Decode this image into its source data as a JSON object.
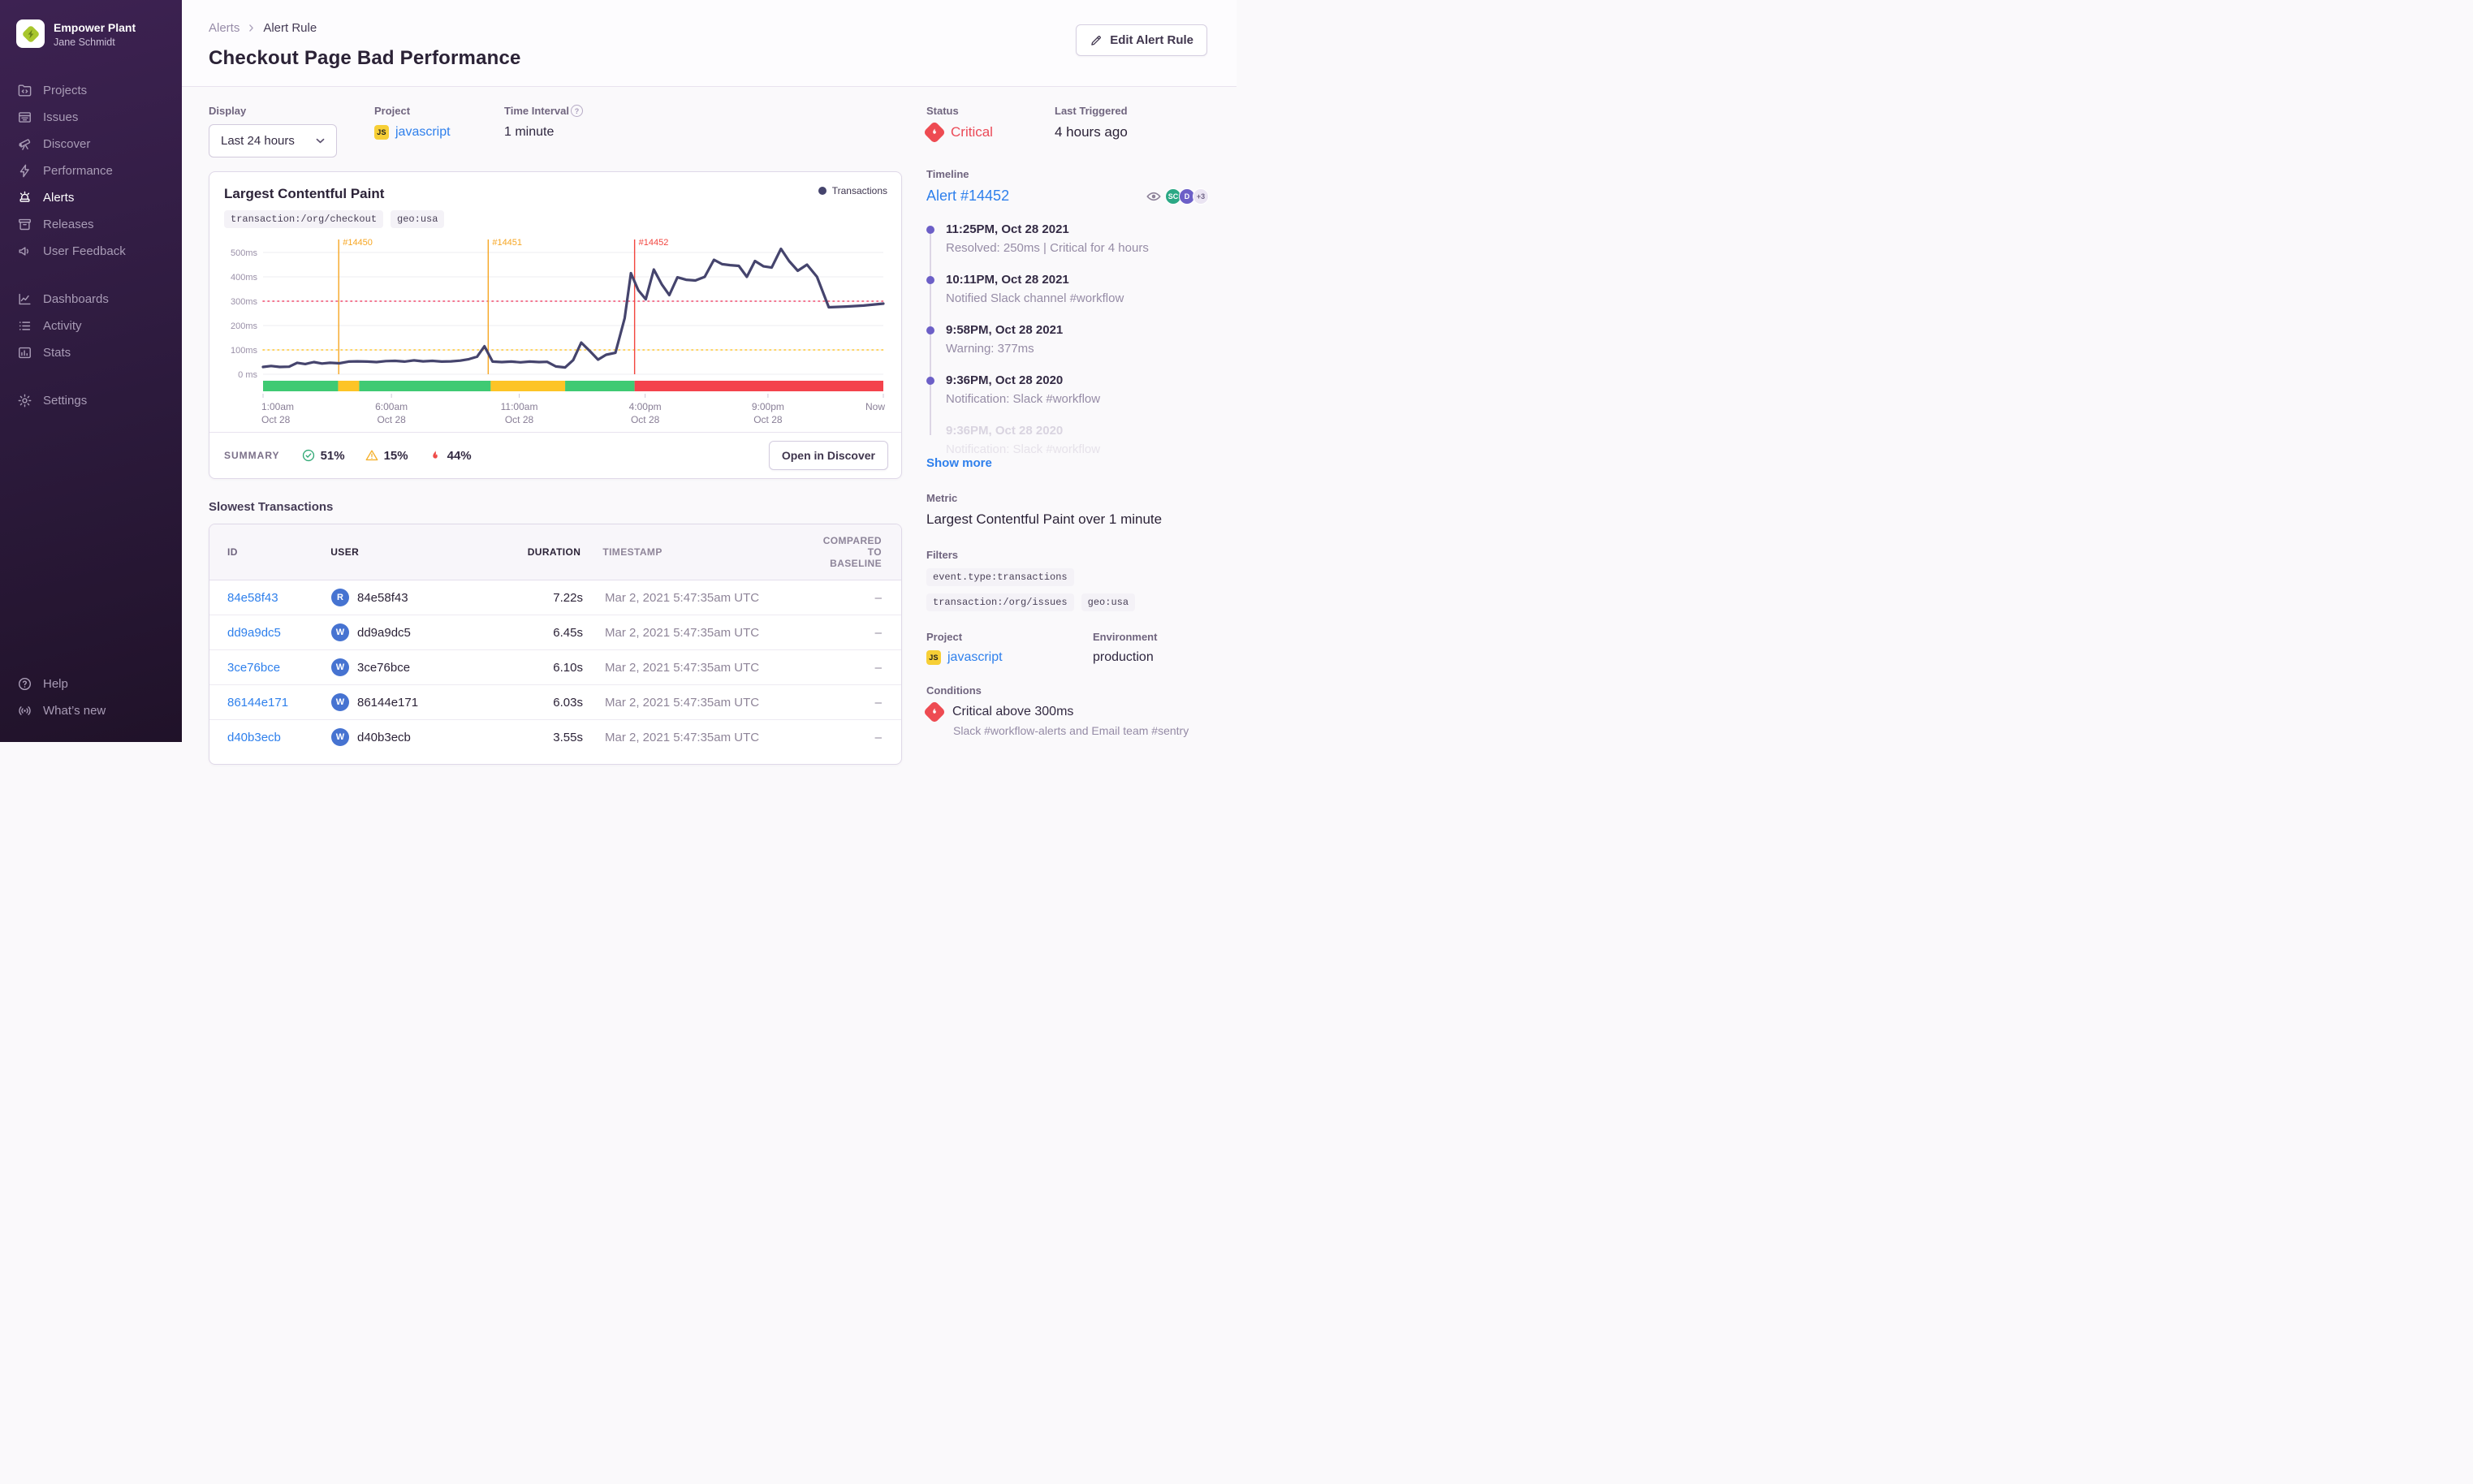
{
  "sidebar": {
    "org_name": "Empower Plant",
    "user_name": "Jane Schmidt",
    "nav_primary": [
      {
        "label": "Projects",
        "icon": "projects-icon",
        "active": false
      },
      {
        "label": "Issues",
        "icon": "issues-icon",
        "active": false
      },
      {
        "label": "Discover",
        "icon": "discover-icon",
        "active": false
      },
      {
        "label": "Performance",
        "icon": "performance-icon",
        "active": false
      },
      {
        "label": "Alerts",
        "icon": "alerts-icon",
        "active": true
      },
      {
        "label": "Releases",
        "icon": "releases-icon",
        "active": false
      },
      {
        "label": "User Feedback",
        "icon": "user-feedback-icon",
        "active": false
      }
    ],
    "nav_secondary": [
      {
        "label": "Dashboards",
        "icon": "dashboards-icon",
        "active": false
      },
      {
        "label": "Activity",
        "icon": "activity-icon",
        "active": false
      },
      {
        "label": "Stats",
        "icon": "stats-icon",
        "active": false
      }
    ],
    "nav_tertiary": [
      {
        "label": "Settings",
        "icon": "settings-icon",
        "active": false
      }
    ],
    "nav_footer": [
      {
        "label": "Help",
        "icon": "help-icon",
        "active": false
      },
      {
        "label": "What’s new",
        "icon": "whats-new-icon",
        "active": false
      }
    ]
  },
  "header": {
    "breadcrumb": [
      "Alerts",
      "Alert Rule"
    ],
    "title": "Checkout Page Bad Performance",
    "edit_button": "Edit Alert Rule"
  },
  "controls": {
    "display": {
      "label": "Display",
      "value": "Last 24 hours"
    },
    "project": {
      "label": "Project",
      "value": "javascript",
      "platform": "JS"
    },
    "interval": {
      "label": "Time Interval",
      "value": "1 minute"
    }
  },
  "status_panel": {
    "status": {
      "label": "Status",
      "value": "Critical",
      "color": "#eb4a57"
    },
    "last_triggered": {
      "label": "Last Triggered",
      "value": "4 hours ago"
    }
  },
  "chart_card": {
    "title": "Largest Contentful Paint",
    "tags": [
      "transaction:/org/checkout",
      "geo:usa"
    ],
    "summary": {
      "label": "SUMMARY",
      "items": [
        {
          "icon": "check-circle-icon",
          "value": "51%",
          "color": "#2fa874"
        },
        {
          "icon": "warning-triangle-icon",
          "value": "15%",
          "color": "#f5b12d"
        },
        {
          "icon": "flame-icon",
          "value": "44%",
          "color": "#ee4b48"
        }
      ]
    },
    "open_button": "Open in Discover"
  },
  "chart_data": {
    "type": "line",
    "title": "Largest Contentful Paint",
    "ylabel": "ms",
    "ylim": [
      0,
      500
    ],
    "grid": true,
    "legend": [
      {
        "name": "Transactions",
        "color": "#45446d"
      }
    ],
    "yticks": [
      {
        "v": 0,
        "label": "0 ms"
      },
      {
        "v": 100,
        "label": "100ms"
      },
      {
        "v": 200,
        "label": "200ms"
      },
      {
        "v": 300,
        "label": "300ms"
      },
      {
        "v": 400,
        "label": "400ms"
      },
      {
        "v": 500,
        "label": "500ms"
      }
    ],
    "xticks": [
      {
        "f": 0,
        "line1": "1:00am",
        "line2": "Oct 28"
      },
      {
        "f": 0.207,
        "line1": "6:00am",
        "line2": "Oct 28"
      },
      {
        "f": 0.413,
        "line1": "11:00am",
        "line2": "Oct 28"
      },
      {
        "f": 0.616,
        "line1": "4:00pm",
        "line2": "Oct 28"
      },
      {
        "f": 0.814,
        "line1": "9:00pm",
        "line2": "Oct 28"
      },
      {
        "f": 1,
        "line1": "Now",
        "line2": ""
      }
    ],
    "thresholds": [
      {
        "value": 300,
        "color": "#f04a6d",
        "label": "critical"
      },
      {
        "value": 100,
        "color": "#ffc52f",
        "label": "warning"
      }
    ],
    "incident_markers": [
      {
        "f": 0.122,
        "label": "#14450",
        "color": "#f6a623"
      },
      {
        "f": 0.363,
        "label": "#14451",
        "color": "#f6a623"
      },
      {
        "f": 0.599,
        "label": "#14452",
        "color": "#f2453f"
      }
    ],
    "status_strip": [
      {
        "from": 0,
        "to": 0.121,
        "color": "#3fca73"
      },
      {
        "from": 0.121,
        "to": 0.155,
        "color": "#fdc426"
      },
      {
        "from": 0.155,
        "to": 0.367,
        "color": "#3fca73"
      },
      {
        "from": 0.367,
        "to": 0.487,
        "color": "#fdc426"
      },
      {
        "from": 0.487,
        "to": 0.599,
        "color": "#3fca73"
      },
      {
        "from": 0.599,
        "to": 1,
        "color": "#f4434c"
      }
    ],
    "series": [
      {
        "name": "Transactions",
        "color": "#45446d",
        "points": [
          [
            0,
            30
          ],
          [
            0.013,
            34
          ],
          [
            0.027,
            30
          ],
          [
            0.042,
            31
          ],
          [
            0.055,
            47
          ],
          [
            0.068,
            42
          ],
          [
            0.082,
            50
          ],
          [
            0.095,
            44
          ],
          [
            0.108,
            47
          ],
          [
            0.123,
            45
          ],
          [
            0.138,
            52
          ],
          [
            0.152,
            53
          ],
          [
            0.168,
            52
          ],
          [
            0.183,
            50
          ],
          [
            0.198,
            54
          ],
          [
            0.213,
            55
          ],
          [
            0.228,
            52
          ],
          [
            0.243,
            57
          ],
          [
            0.258,
            53
          ],
          [
            0.273,
            55
          ],
          [
            0.288,
            52
          ],
          [
            0.303,
            53
          ],
          [
            0.318,
            56
          ],
          [
            0.332,
            62
          ],
          [
            0.345,
            72
          ],
          [
            0.357,
            115
          ],
          [
            0.37,
            52
          ],
          [
            0.385,
            50
          ],
          [
            0.4,
            52
          ],
          [
            0.415,
            49
          ],
          [
            0.43,
            52
          ],
          [
            0.445,
            50
          ],
          [
            0.458,
            51
          ],
          [
            0.472,
            32
          ],
          [
            0.487,
            28
          ],
          [
            0.5,
            58
          ],
          [
            0.513,
            130
          ],
          [
            0.527,
            95
          ],
          [
            0.54,
            60
          ],
          [
            0.553,
            80
          ],
          [
            0.568,
            88
          ],
          [
            0.583,
            230
          ],
          [
            0.593,
            415
          ],
          [
            0.605,
            345
          ],
          [
            0.617,
            308
          ],
          [
            0.63,
            430
          ],
          [
            0.643,
            368
          ],
          [
            0.655,
            325
          ],
          [
            0.668,
            398
          ],
          [
            0.682,
            388
          ],
          [
            0.697,
            385
          ],
          [
            0.712,
            400
          ],
          [
            0.727,
            470
          ],
          [
            0.74,
            452
          ],
          [
            0.753,
            448
          ],
          [
            0.767,
            445
          ],
          [
            0.78,
            400
          ],
          [
            0.793,
            465
          ],
          [
            0.807,
            443
          ],
          [
            0.82,
            438
          ],
          [
            0.835,
            515
          ],
          [
            0.848,
            465
          ],
          [
            0.862,
            425
          ],
          [
            0.877,
            450
          ],
          [
            0.893,
            400
          ],
          [
            0.912,
            275
          ],
          [
            0.94,
            278
          ],
          [
            0.968,
            282
          ],
          [
            1,
            290
          ]
        ]
      }
    ]
  },
  "transactions": {
    "heading": "Slowest Transactions",
    "columns": [
      "ID",
      "USER",
      "DURATION",
      "TIMESTAMP",
      "COMPARED TO BASELINE"
    ],
    "rows": [
      {
        "id": "84e58f43",
        "avatar": "R",
        "user": "84e58f43",
        "duration": "7.22s",
        "timestamp": "Mar 2, 2021 5:47:35am UTC",
        "baseline": "–"
      },
      {
        "id": "dd9a9dc5",
        "avatar": "W",
        "user": "dd9a9dc5",
        "duration": "6.45s",
        "timestamp": "Mar 2, 2021 5:47:35am UTC",
        "baseline": "–"
      },
      {
        "id": "3ce76bce",
        "avatar": "W",
        "user": "3ce76bce",
        "duration": "6.10s",
        "timestamp": "Mar 2, 2021 5:47:35am UTC",
        "baseline": "–"
      },
      {
        "id": "86144e171",
        "avatar": "W",
        "user": "86144e171",
        "duration": "6.03s",
        "timestamp": "Mar 2, 2021 5:47:35am UTC",
        "baseline": "–"
      },
      {
        "id": "d40b3ecb",
        "avatar": "W",
        "user": "d40b3ecb",
        "duration": "3.55s",
        "timestamp": "Mar 2, 2021 5:47:35am UTC",
        "baseline": "–"
      }
    ]
  },
  "timeline": {
    "label": "Timeline",
    "alert_link": "Alert #14452",
    "avatars": [
      {
        "initials": "SC",
        "bg": "#2ba885",
        "fg": "#ffffff"
      },
      {
        "initials": "D",
        "bg": "#6C5FC7",
        "fg": "#ffffff"
      },
      {
        "initials": "+3",
        "bg": "#eae4f2",
        "fg": "#6f6486"
      }
    ],
    "entries": [
      {
        "time": "11:25PM, Oct 28 2021",
        "desc": "Resolved: 250ms | Critical for 4 hours",
        "faded": false
      },
      {
        "time": "10:11PM, Oct 28 2021",
        "desc": "Notified Slack channel #workflow",
        "faded": false
      },
      {
        "time": "9:58PM, Oct 28 2021",
        "desc": "Warning: 377ms",
        "faded": false
      },
      {
        "time": "9:36PM, Oct 28 2020",
        "desc": "Notification: Slack #workflow",
        "faded": false
      },
      {
        "time": "9:36PM, Oct 28 2020",
        "desc": "Notification: Slack #workflow",
        "faded": true
      }
    ],
    "show_more": "Show more"
  },
  "details": {
    "metric": {
      "label": "Metric",
      "value": "Largest Contentful Paint over 1 minute"
    },
    "filters": {
      "label": "Filters",
      "tags": [
        "event.type:transactions",
        "transaction:/org/issues",
        "geo:usa"
      ]
    },
    "project": {
      "label": "Project",
      "value": "javascript",
      "platform": "JS"
    },
    "environment": {
      "label": "Environment",
      "value": "production"
    },
    "conditions": {
      "label": "Conditions",
      "title": "Critical above 300ms",
      "subtitle": "Slack #workflow-alerts and Email team #sentry"
    }
  }
}
